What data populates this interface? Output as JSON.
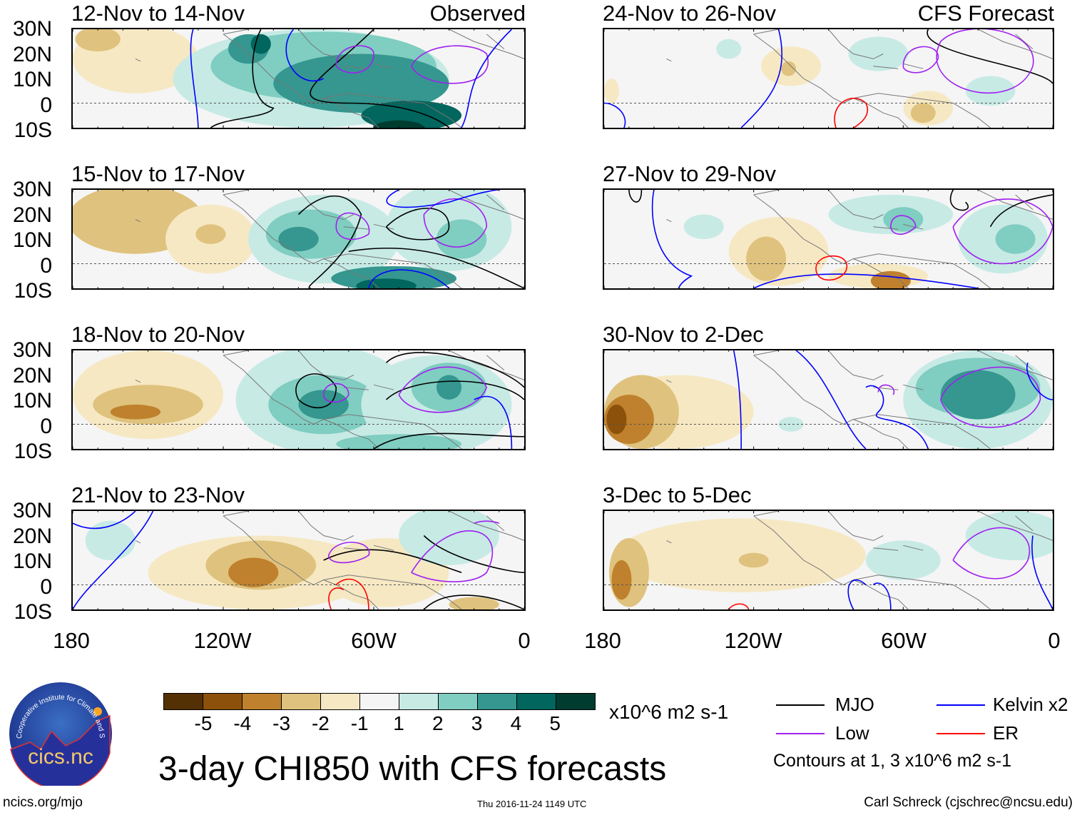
{
  "panels": [
    {
      "title": "12-Nov to 14-Nov",
      "label": "Observed"
    },
    {
      "title": "24-Nov to 26-Nov",
      "label": "CFS Forecast"
    },
    {
      "title": "15-Nov to 17-Nov",
      "label": ""
    },
    {
      "title": "27-Nov to 29-Nov",
      "label": ""
    },
    {
      "title": "18-Nov to 20-Nov",
      "label": ""
    },
    {
      "title": "30-Nov to 2-Dec",
      "label": ""
    },
    {
      "title": "21-Nov to 23-Nov",
      "label": ""
    },
    {
      "title": "3-Dec to 5-Dec",
      "label": ""
    }
  ],
  "lat_labels": [
    "30N",
    "20N",
    "10N",
    "0",
    "10S"
  ],
  "lon_labels": [
    "180",
    "120W",
    "60W",
    "0"
  ],
  "colorbar": {
    "colors": [
      "#543005",
      "#8c510a",
      "#bf812d",
      "#dfc27d",
      "#f6e8c3",
      "#f5f5f5",
      "#c7eae5",
      "#80cdc1",
      "#35978f",
      "#01665e",
      "#003c30"
    ],
    "labels": [
      "-5",
      "-4",
      "-3",
      "-2",
      "-1",
      "1",
      "2",
      "3",
      "4",
      "5"
    ],
    "units": "x10^6 m2 s-1"
  },
  "legend": {
    "items": [
      {
        "label": "MJO",
        "color": "#000000"
      },
      {
        "label": "Kelvin x2",
        "color": "#0000ff"
      },
      {
        "label": "Low",
        "color": "#a020f0"
      },
      {
        "label": "ER",
        "color": "#ff0000"
      }
    ],
    "note": "Contours at 1, 3 x10^6 m2 s-1"
  },
  "title": "3-day CHI850 with CFS forecasts",
  "logo": {
    "ring_text": "Cooperative Institute for Climate and Satellites",
    "name": "cics.nc"
  },
  "footer": {
    "url": "ncics.org/mjo",
    "timestamp": "Thu 2016-11-24 1149 UTC",
    "credit": "Carl Schreck (cjschrec@ncsu.edu)"
  }
}
